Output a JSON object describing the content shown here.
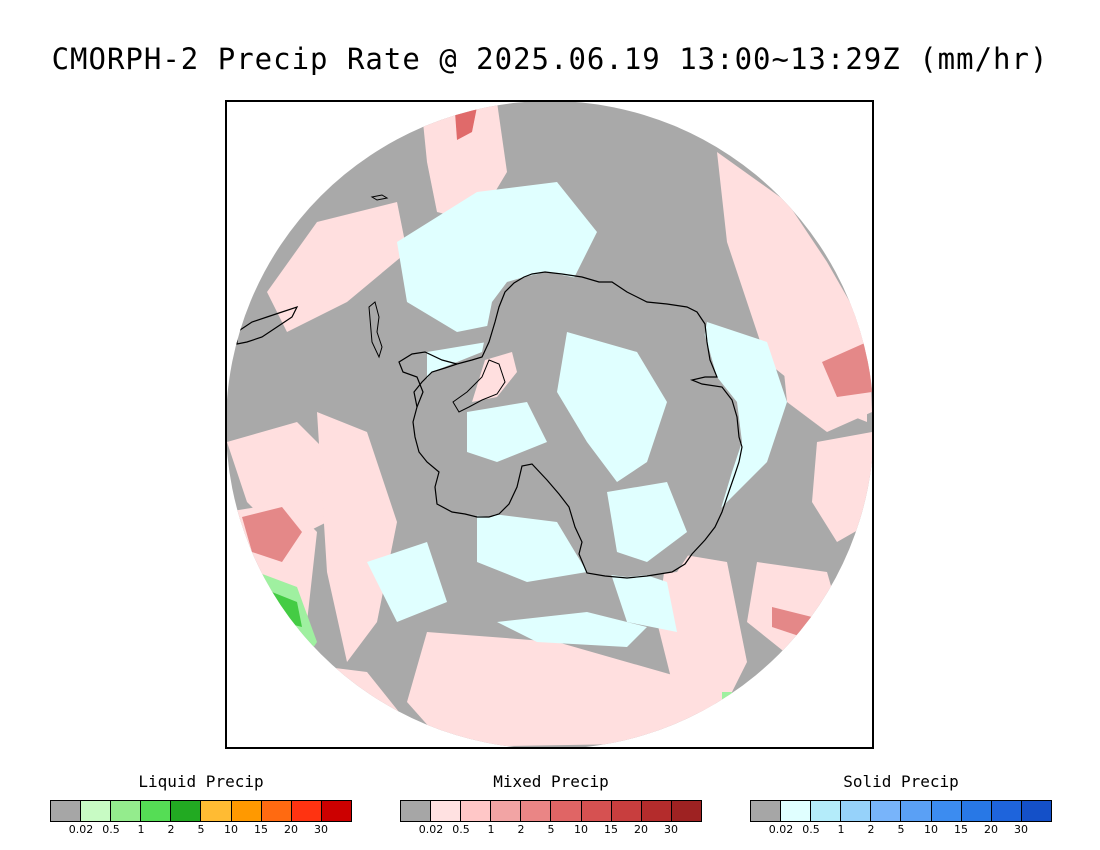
{
  "title": "CMORPH-2 Precip Rate @ 2025.06.19 13:00~13:29Z (mm/hr)",
  "map": {
    "colors": {
      "ocean_no_precip": "#a9a9a9",
      "mixed_light": "#ffdfdf",
      "solid_light": "#e0ffff",
      "mixed_medium": "#e48888",
      "mixed_strong": "#e06a6a",
      "liquid_light": "#9ff0a0",
      "liquid_medium": "#44cc44",
      "coastline": "#000000"
    }
  },
  "legends": [
    {
      "title": "Liquid Precip",
      "ticks": [
        "0.02",
        "0.5",
        "1",
        "2",
        "5",
        "10",
        "15",
        "20",
        "30"
      ],
      "colors": [
        "#a6a6a6",
        "#c8fbc4",
        "#94ec8d",
        "#55dd55",
        "#22aa22",
        "#ffbb33",
        "#ff9900",
        "#ff6a11",
        "#ff3311",
        "#cc0000"
      ]
    },
    {
      "title": "Mixed Precip",
      "ticks": [
        "0.02",
        "0.5",
        "1",
        "2",
        "5",
        "10",
        "15",
        "20",
        "30"
      ],
      "colors": [
        "#a6a6a6",
        "#ffe1e1",
        "#ffc7c7",
        "#f2a4a4",
        "#ea8585",
        "#e06565",
        "#d65151",
        "#c83e3e",
        "#b42c2c",
        "#9e2222"
      ]
    },
    {
      "title": "Solid Precip",
      "ticks": [
        "0.02",
        "0.5",
        "1",
        "2",
        "5",
        "10",
        "15",
        "20",
        "30"
      ],
      "colors": [
        "#a6a6a6",
        "#e0ffff",
        "#b4ecfa",
        "#96d2fa",
        "#78b4fa",
        "#5aa0f5",
        "#3c8cf0",
        "#2878e6",
        "#1e64dc",
        "#1450c8"
      ]
    }
  ]
}
